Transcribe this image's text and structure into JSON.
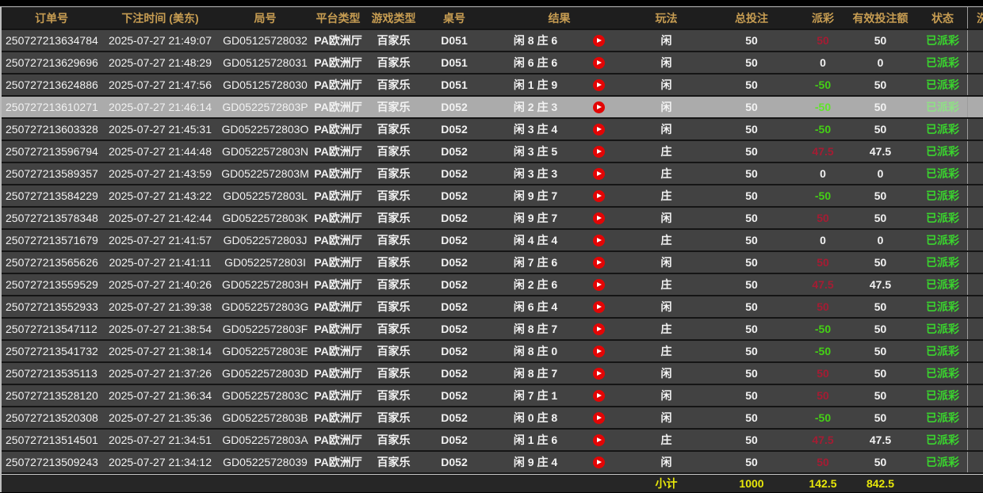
{
  "colors": {
    "header_text": "#c79d52",
    "row_bg": "#424242",
    "selected_row_bg": "#ababab",
    "payout_win": "#a51c33",
    "payout_lose": "#44d015",
    "status_green": "#3ad42e",
    "footer_yellow": "#e8e80a",
    "play_icon_red": "#e30505"
  },
  "table": {
    "columns": [
      {
        "key": "order_no",
        "label": "订单号"
      },
      {
        "key": "bet_time",
        "label": "下注时间 (美东)"
      },
      {
        "key": "round_no",
        "label": "局号"
      },
      {
        "key": "platform",
        "label": "平台类型"
      },
      {
        "key": "game_type",
        "label": "游戏类型"
      },
      {
        "key": "table_no",
        "label": "桌号"
      },
      {
        "key": "result",
        "label": "结果"
      },
      {
        "key": "play",
        "label": "玩法"
      },
      {
        "key": "total_bet",
        "label": "总投注"
      },
      {
        "key": "payout",
        "label": "派彩"
      },
      {
        "key": "valid_bet",
        "label": "有效投注额"
      },
      {
        "key": "status",
        "label": "状态"
      },
      {
        "key": "partial",
        "label": "洗"
      }
    ],
    "selected_row_index": 3,
    "rows": [
      {
        "order_no": "250727213634784",
        "bet_time": "2025-07-27 21:49:07",
        "round_no": "GD05125728032",
        "platform": "PA欧洲厅",
        "game_type": "百家乐",
        "table_no": "D051",
        "result": "闲 8 庄 6",
        "play": "闲",
        "total_bet": "50",
        "payout": "50",
        "payout_sign": "win",
        "valid_bet": "50",
        "status": "已派彩"
      },
      {
        "order_no": "250727213629696",
        "bet_time": "2025-07-27 21:48:29",
        "round_no": "GD05125728031",
        "platform": "PA欧洲厅",
        "game_type": "百家乐",
        "table_no": "D051",
        "result": "闲 6 庄 6",
        "play": "闲",
        "total_bet": "50",
        "payout": "0",
        "payout_sign": "zero",
        "valid_bet": "0",
        "status": "已派彩"
      },
      {
        "order_no": "250727213624886",
        "bet_time": "2025-07-27 21:47:56",
        "round_no": "GD05125728030",
        "platform": "PA欧洲厅",
        "game_type": "百家乐",
        "table_no": "D051",
        "result": "闲 1 庄 9",
        "play": "闲",
        "total_bet": "50",
        "payout": "-50",
        "payout_sign": "lose",
        "valid_bet": "50",
        "status": "已派彩"
      },
      {
        "order_no": "250727213610271",
        "bet_time": "2025-07-27 21:46:14",
        "round_no": "GD0522572803P",
        "platform": "PA欧洲厅",
        "game_type": "百家乐",
        "table_no": "D052",
        "result": "闲 2 庄 3",
        "play": "闲",
        "total_bet": "50",
        "payout": "-50",
        "payout_sign": "lose",
        "valid_bet": "50",
        "status": "已派彩"
      },
      {
        "order_no": "250727213603328",
        "bet_time": "2025-07-27 21:45:31",
        "round_no": "GD0522572803O",
        "platform": "PA欧洲厅",
        "game_type": "百家乐",
        "table_no": "D052",
        "result": "闲 3 庄 4",
        "play": "闲",
        "total_bet": "50",
        "payout": "-50",
        "payout_sign": "lose",
        "valid_bet": "50",
        "status": "已派彩"
      },
      {
        "order_no": "250727213596794",
        "bet_time": "2025-07-27 21:44:48",
        "round_no": "GD0522572803N",
        "platform": "PA欧洲厅",
        "game_type": "百家乐",
        "table_no": "D052",
        "result": "闲 3 庄 5",
        "play": "庄",
        "total_bet": "50",
        "payout": "47.5",
        "payout_sign": "win",
        "valid_bet": "47.5",
        "status": "已派彩"
      },
      {
        "order_no": "250727213589357",
        "bet_time": "2025-07-27 21:43:59",
        "round_no": "GD0522572803M",
        "platform": "PA欧洲厅",
        "game_type": "百家乐",
        "table_no": "D052",
        "result": "闲 3 庄 3",
        "play": "庄",
        "total_bet": "50",
        "payout": "0",
        "payout_sign": "zero",
        "valid_bet": "0",
        "status": "已派彩"
      },
      {
        "order_no": "250727213584229",
        "bet_time": "2025-07-27 21:43:22",
        "round_no": "GD0522572803L",
        "platform": "PA欧洲厅",
        "game_type": "百家乐",
        "table_no": "D052",
        "result": "闲 9 庄 7",
        "play": "庄",
        "total_bet": "50",
        "payout": "-50",
        "payout_sign": "lose",
        "valid_bet": "50",
        "status": "已派彩"
      },
      {
        "order_no": "250727213578348",
        "bet_time": "2025-07-27 21:42:44",
        "round_no": "GD0522572803K",
        "platform": "PA欧洲厅",
        "game_type": "百家乐",
        "table_no": "D052",
        "result": "闲 9 庄 7",
        "play": "闲",
        "total_bet": "50",
        "payout": "50",
        "payout_sign": "win",
        "valid_bet": "50",
        "status": "已派彩"
      },
      {
        "order_no": "250727213571679",
        "bet_time": "2025-07-27 21:41:57",
        "round_no": "GD0522572803J",
        "platform": "PA欧洲厅",
        "game_type": "百家乐",
        "table_no": "D052",
        "result": "闲 4 庄 4",
        "play": "庄",
        "total_bet": "50",
        "payout": "0",
        "payout_sign": "zero",
        "valid_bet": "0",
        "status": "已派彩"
      },
      {
        "order_no": "250727213565626",
        "bet_time": "2025-07-27 21:41:11",
        "round_no": "GD0522572803I",
        "platform": "PA欧洲厅",
        "game_type": "百家乐",
        "table_no": "D052",
        "result": "闲 7 庄 6",
        "play": "闲",
        "total_bet": "50",
        "payout": "50",
        "payout_sign": "win",
        "valid_bet": "50",
        "status": "已派彩"
      },
      {
        "order_no": "250727213559529",
        "bet_time": "2025-07-27 21:40:26",
        "round_no": "GD0522572803H",
        "platform": "PA欧洲厅",
        "game_type": "百家乐",
        "table_no": "D052",
        "result": "闲 2 庄 6",
        "play": "庄",
        "total_bet": "50",
        "payout": "47.5",
        "payout_sign": "win",
        "valid_bet": "47.5",
        "status": "已派彩"
      },
      {
        "order_no": "250727213552933",
        "bet_time": "2025-07-27 21:39:38",
        "round_no": "GD0522572803G",
        "platform": "PA欧洲厅",
        "game_type": "百家乐",
        "table_no": "D052",
        "result": "闲 6 庄 4",
        "play": "闲",
        "total_bet": "50",
        "payout": "50",
        "payout_sign": "win",
        "valid_bet": "50",
        "status": "已派彩"
      },
      {
        "order_no": "250727213547112",
        "bet_time": "2025-07-27 21:38:54",
        "round_no": "GD0522572803F",
        "platform": "PA欧洲厅",
        "game_type": "百家乐",
        "table_no": "D052",
        "result": "闲 8 庄 7",
        "play": "庄",
        "total_bet": "50",
        "payout": "-50",
        "payout_sign": "lose",
        "valid_bet": "50",
        "status": "已派彩"
      },
      {
        "order_no": "250727213541732",
        "bet_time": "2025-07-27 21:38:14",
        "round_no": "GD0522572803E",
        "platform": "PA欧洲厅",
        "game_type": "百家乐",
        "table_no": "D052",
        "result": "闲 8 庄 0",
        "play": "庄",
        "total_bet": "50",
        "payout": "-50",
        "payout_sign": "lose",
        "valid_bet": "50",
        "status": "已派彩"
      },
      {
        "order_no": "250727213535113",
        "bet_time": "2025-07-27 21:37:26",
        "round_no": "GD0522572803D",
        "platform": "PA欧洲厅",
        "game_type": "百家乐",
        "table_no": "D052",
        "result": "闲 8 庄 7",
        "play": "闲",
        "total_bet": "50",
        "payout": "50",
        "payout_sign": "win",
        "valid_bet": "50",
        "status": "已派彩"
      },
      {
        "order_no": "250727213528120",
        "bet_time": "2025-07-27 21:36:34",
        "round_no": "GD0522572803C",
        "platform": "PA欧洲厅",
        "game_type": "百家乐",
        "table_no": "D052",
        "result": "闲 7 庄 1",
        "play": "闲",
        "total_bet": "50",
        "payout": "50",
        "payout_sign": "win",
        "valid_bet": "50",
        "status": "已派彩"
      },
      {
        "order_no": "250727213520308",
        "bet_time": "2025-07-27 21:35:36",
        "round_no": "GD0522572803B",
        "platform": "PA欧洲厅",
        "game_type": "百家乐",
        "table_no": "D052",
        "result": "闲 0 庄 8",
        "play": "闲",
        "total_bet": "50",
        "payout": "-50",
        "payout_sign": "lose",
        "valid_bet": "50",
        "status": "已派彩"
      },
      {
        "order_no": "250727213514501",
        "bet_time": "2025-07-27 21:34:51",
        "round_no": "GD0522572803A",
        "platform": "PA欧洲厅",
        "game_type": "百家乐",
        "table_no": "D052",
        "result": "闲 1 庄 6",
        "play": "庄",
        "total_bet": "50",
        "payout": "47.5",
        "payout_sign": "win",
        "valid_bet": "47.5",
        "status": "已派彩"
      },
      {
        "order_no": "250727213509243",
        "bet_time": "2025-07-27 21:34:12",
        "round_no": "GD05225728039",
        "platform": "PA欧洲厅",
        "game_type": "百家乐",
        "table_no": "D052",
        "result": "闲 9 庄 4",
        "play": "闲",
        "total_bet": "50",
        "payout": "50",
        "payout_sign": "win",
        "valid_bet": "50",
        "status": "已派彩"
      }
    ],
    "footer": {
      "label": "小计",
      "total_bet": "1000",
      "payout": "142.5",
      "valid_bet": "842.5"
    }
  }
}
